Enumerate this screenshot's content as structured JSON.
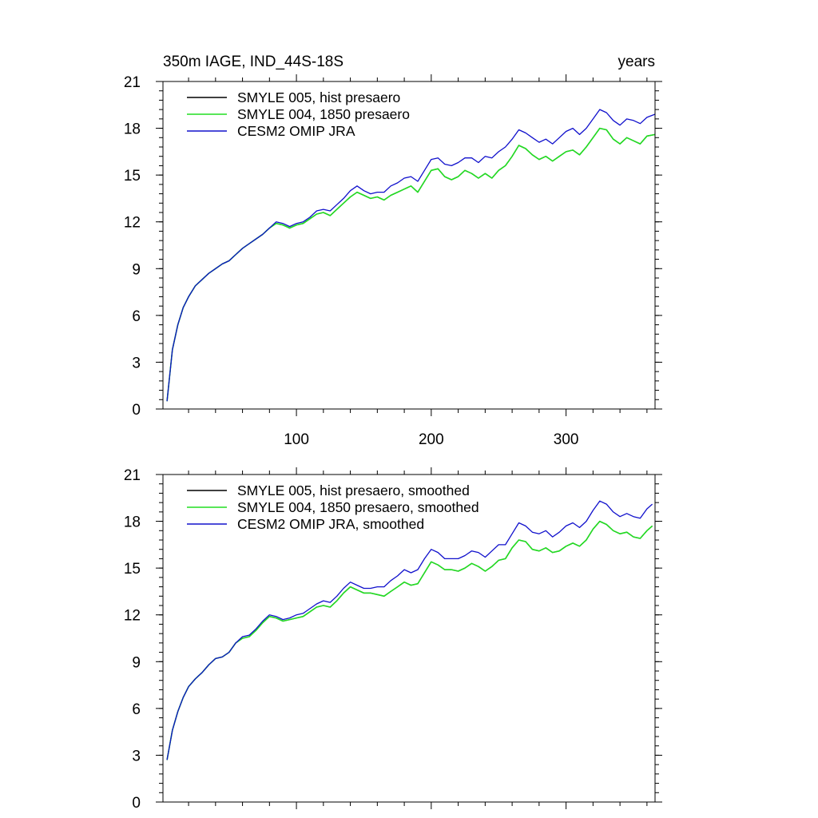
{
  "chart_data": [
    {
      "type": "line",
      "title_left": "350m IAGE, IND_44S-18S",
      "title_right": "years",
      "xlabel": "",
      "ylabel": "",
      "xlim": [
        1,
        366
      ],
      "ylim": [
        0,
        21
      ],
      "yticks": [
        0,
        3,
        6,
        9,
        12,
        15,
        18,
        21
      ],
      "xticks": [
        100,
        200,
        300
      ],
      "grid": false,
      "legend_position": "top-left",
      "series": [
        {
          "name": "SMYLE 005, hist presaero",
          "color": "#000000",
          "x": [
            4,
            8,
            12,
            16,
            20,
            25,
            30,
            35,
            40,
            45,
            50,
            55,
            60,
            65,
            70,
            75,
            80,
            85,
            90,
            95,
            100,
            105,
            110,
            115,
            120,
            125,
            130,
            135,
            140,
            145,
            150,
            155,
            160,
            165,
            170,
            175,
            180,
            185,
            190,
            195,
            200,
            205,
            210,
            215,
            220,
            225,
            230,
            235,
            240,
            245,
            250,
            255,
            260,
            265,
            270,
            275,
            280,
            285,
            290,
            295,
            300,
            305,
            310,
            315,
            320,
            325,
            330,
            335,
            340,
            345,
            350,
            355,
            360,
            366
          ],
          "y": [
            0.5,
            3.8,
            5.4,
            6.5,
            7.2,
            7.9,
            8.3,
            8.7,
            9.0,
            9.3,
            9.5,
            9.9,
            10.3,
            10.6,
            10.9,
            11.2,
            11.6,
            11.9,
            11.8,
            11.6,
            11.8,
            11.9,
            12.2,
            12.5,
            12.6,
            12.4,
            12.8,
            13.2,
            13.6,
            13.9,
            13.7,
            13.5,
            13.6,
            13.4,
            13.7,
            13.9,
            14.1,
            14.3,
            13.9,
            14.6,
            15.3,
            15.4,
            14.9,
            14.7,
            14.9,
            15.3,
            15.1,
            14.8,
            15.1,
            14.8,
            15.3,
            15.6,
            16.2,
            16.9,
            16.7,
            16.3,
            16.0,
            16.2,
            15.9,
            16.2,
            16.5,
            16.6,
            16.3,
            16.8,
            17.4,
            18.0,
            17.9,
            17.3,
            17.0,
            17.4,
            17.2,
            17.0,
            17.5,
            17.6
          ]
        },
        {
          "name": "SMYLE 004, 1850 presaero",
          "color": "#22dd22",
          "x": [
            4,
            8,
            12,
            16,
            20,
            25,
            30,
            35,
            40,
            45,
            50,
            55,
            60,
            65,
            70,
            75,
            80,
            85,
            90,
            95,
            100,
            105,
            110,
            115,
            120,
            125,
            130,
            135,
            140,
            145,
            150,
            155,
            160,
            165,
            170,
            175,
            180,
            185,
            190,
            195,
            200,
            205,
            210,
            215,
            220,
            225,
            230,
            235,
            240,
            245,
            250,
            255,
            260,
            265,
            270,
            275,
            280,
            285,
            290,
            295,
            300,
            305,
            310,
            315,
            320,
            325,
            330,
            335,
            340,
            345,
            350,
            355,
            360,
            366
          ],
          "y": [
            0.5,
            3.8,
            5.4,
            6.5,
            7.2,
            7.9,
            8.3,
            8.7,
            9.0,
            9.3,
            9.5,
            9.9,
            10.3,
            10.6,
            10.9,
            11.2,
            11.6,
            11.9,
            11.8,
            11.6,
            11.8,
            11.9,
            12.2,
            12.5,
            12.6,
            12.4,
            12.8,
            13.2,
            13.6,
            13.9,
            13.7,
            13.5,
            13.6,
            13.4,
            13.7,
            13.9,
            14.1,
            14.3,
            13.9,
            14.6,
            15.3,
            15.4,
            14.9,
            14.7,
            14.9,
            15.3,
            15.1,
            14.8,
            15.1,
            14.8,
            15.3,
            15.6,
            16.2,
            16.9,
            16.7,
            16.3,
            16.0,
            16.2,
            15.9,
            16.2,
            16.5,
            16.6,
            16.3,
            16.8,
            17.4,
            18.0,
            17.9,
            17.3,
            17.0,
            17.4,
            17.2,
            17.0,
            17.5,
            17.6
          ]
        },
        {
          "name": "CESM2 OMIP JRA",
          "color": "#1010cc",
          "x": [
            4,
            8,
            12,
            16,
            20,
            25,
            30,
            35,
            40,
            45,
            50,
            55,
            60,
            65,
            70,
            75,
            80,
            85,
            90,
            95,
            100,
            105,
            110,
            115,
            120,
            125,
            130,
            135,
            140,
            145,
            150,
            155,
            160,
            165,
            170,
            175,
            180,
            185,
            190,
            195,
            200,
            205,
            210,
            215,
            220,
            225,
            230,
            235,
            240,
            245,
            250,
            255,
            260,
            265,
            270,
            275,
            280,
            285,
            290,
            295,
            300,
            305,
            310,
            315,
            320,
            325,
            330,
            335,
            340,
            345,
            350,
            355,
            360,
            366
          ],
          "y": [
            0.5,
            3.8,
            5.4,
            6.5,
            7.2,
            7.9,
            8.3,
            8.7,
            9.0,
            9.3,
            9.5,
            9.9,
            10.3,
            10.6,
            10.9,
            11.2,
            11.6,
            12.0,
            11.9,
            11.7,
            11.9,
            12.0,
            12.3,
            12.7,
            12.8,
            12.7,
            13.1,
            13.5,
            14.0,
            14.3,
            14.0,
            13.8,
            13.9,
            13.9,
            14.3,
            14.5,
            14.8,
            14.9,
            14.6,
            15.3,
            16.0,
            16.1,
            15.7,
            15.6,
            15.8,
            16.1,
            16.1,
            15.8,
            16.2,
            16.1,
            16.5,
            16.8,
            17.3,
            17.9,
            17.7,
            17.4,
            17.1,
            17.3,
            17.0,
            17.4,
            17.8,
            18.0,
            17.6,
            18.0,
            18.6,
            19.2,
            19.0,
            18.5,
            18.2,
            18.6,
            18.5,
            18.3,
            18.7,
            18.9
          ]
        }
      ]
    },
    {
      "type": "line",
      "xlabel": "",
      "ylabel": "",
      "xlim": [
        1,
        366
      ],
      "ylim": [
        0,
        21
      ],
      "yticks": [
        0,
        3,
        6,
        9,
        12,
        15,
        18,
        21
      ],
      "xticks": [
        100,
        200,
        300
      ],
      "grid": false,
      "legend_position": "top-left",
      "series": [
        {
          "name": "SMYLE 005, hist presaero, smoothed",
          "color": "#000000",
          "x": [
            4,
            8,
            12,
            16,
            20,
            25,
            30,
            35,
            40,
            45,
            50,
            55,
            60,
            65,
            70,
            75,
            80,
            85,
            90,
            95,
            100,
            105,
            110,
            115,
            120,
            125,
            130,
            135,
            140,
            145,
            150,
            155,
            160,
            165,
            170,
            175,
            180,
            185,
            190,
            195,
            200,
            205,
            210,
            215,
            220,
            225,
            230,
            235,
            240,
            245,
            250,
            255,
            260,
            265,
            270,
            275,
            280,
            285,
            290,
            295,
            300,
            305,
            310,
            315,
            320,
            325,
            330,
            335,
            340,
            345,
            350,
            355,
            360,
            364
          ],
          "y": [
            2.7,
            4.6,
            5.8,
            6.7,
            7.4,
            7.9,
            8.3,
            8.8,
            9.2,
            9.3,
            9.6,
            10.2,
            10.5,
            10.6,
            11.0,
            11.5,
            11.9,
            11.8,
            11.6,
            11.7,
            11.8,
            11.9,
            12.2,
            12.5,
            12.6,
            12.5,
            12.9,
            13.4,
            13.8,
            13.6,
            13.4,
            13.4,
            13.3,
            13.2,
            13.5,
            13.8,
            14.1,
            13.9,
            14.0,
            14.7,
            15.4,
            15.2,
            14.9,
            14.9,
            14.8,
            15.0,
            15.3,
            15.1,
            14.8,
            15.1,
            15.5,
            15.6,
            16.3,
            16.8,
            16.7,
            16.2,
            16.1,
            16.3,
            16.0,
            16.1,
            16.4,
            16.6,
            16.4,
            16.8,
            17.5,
            18.0,
            17.8,
            17.4,
            17.2,
            17.3,
            17.0,
            16.9,
            17.4,
            17.7
          ]
        },
        {
          "name": "SMYLE 004, 1850 presaero, smoothed",
          "color": "#22dd22",
          "x": [
            4,
            8,
            12,
            16,
            20,
            25,
            30,
            35,
            40,
            45,
            50,
            55,
            60,
            65,
            70,
            75,
            80,
            85,
            90,
            95,
            100,
            105,
            110,
            115,
            120,
            125,
            130,
            135,
            140,
            145,
            150,
            155,
            160,
            165,
            170,
            175,
            180,
            185,
            190,
            195,
            200,
            205,
            210,
            215,
            220,
            225,
            230,
            235,
            240,
            245,
            250,
            255,
            260,
            265,
            270,
            275,
            280,
            285,
            290,
            295,
            300,
            305,
            310,
            315,
            320,
            325,
            330,
            335,
            340,
            345,
            350,
            355,
            360,
            364
          ],
          "y": [
            2.7,
            4.6,
            5.8,
            6.7,
            7.4,
            7.9,
            8.3,
            8.8,
            9.2,
            9.3,
            9.6,
            10.2,
            10.5,
            10.6,
            11.0,
            11.5,
            11.9,
            11.8,
            11.6,
            11.7,
            11.8,
            11.9,
            12.2,
            12.5,
            12.6,
            12.5,
            12.9,
            13.4,
            13.8,
            13.6,
            13.4,
            13.4,
            13.3,
            13.2,
            13.5,
            13.8,
            14.1,
            13.9,
            14.0,
            14.7,
            15.4,
            15.2,
            14.9,
            14.9,
            14.8,
            15.0,
            15.3,
            15.1,
            14.8,
            15.1,
            15.5,
            15.6,
            16.3,
            16.8,
            16.7,
            16.2,
            16.1,
            16.3,
            16.0,
            16.1,
            16.4,
            16.6,
            16.4,
            16.8,
            17.5,
            18.0,
            17.8,
            17.4,
            17.2,
            17.3,
            17.0,
            16.9,
            17.4,
            17.7
          ]
        },
        {
          "name": "CESM2 OMIP JRA, smoothed",
          "color": "#1010cc",
          "x": [
            4,
            8,
            12,
            16,
            20,
            25,
            30,
            35,
            40,
            45,
            50,
            55,
            60,
            65,
            70,
            75,
            80,
            85,
            90,
            95,
            100,
            105,
            110,
            115,
            120,
            125,
            130,
            135,
            140,
            145,
            150,
            155,
            160,
            165,
            170,
            175,
            180,
            185,
            190,
            195,
            200,
            205,
            210,
            215,
            220,
            225,
            230,
            235,
            240,
            245,
            250,
            255,
            260,
            265,
            270,
            275,
            280,
            285,
            290,
            295,
            300,
            305,
            310,
            315,
            320,
            325,
            330,
            335,
            340,
            345,
            350,
            355,
            360,
            364
          ],
          "y": [
            2.7,
            4.6,
            5.8,
            6.7,
            7.4,
            7.9,
            8.3,
            8.8,
            9.2,
            9.3,
            9.6,
            10.2,
            10.6,
            10.7,
            11.1,
            11.6,
            12.0,
            11.9,
            11.7,
            11.8,
            12.0,
            12.1,
            12.4,
            12.7,
            12.9,
            12.8,
            13.2,
            13.7,
            14.1,
            13.9,
            13.7,
            13.7,
            13.8,
            13.8,
            14.2,
            14.5,
            14.9,
            14.7,
            14.9,
            15.6,
            16.2,
            16.0,
            15.6,
            15.6,
            15.6,
            15.8,
            16.1,
            16.0,
            15.7,
            16.1,
            16.5,
            16.5,
            17.2,
            17.9,
            17.7,
            17.3,
            17.2,
            17.4,
            17.0,
            17.3,
            17.7,
            17.9,
            17.6,
            18.0,
            18.7,
            19.3,
            19.1,
            18.6,
            18.3,
            18.5,
            18.3,
            18.2,
            18.8,
            19.1
          ]
        }
      ]
    }
  ]
}
